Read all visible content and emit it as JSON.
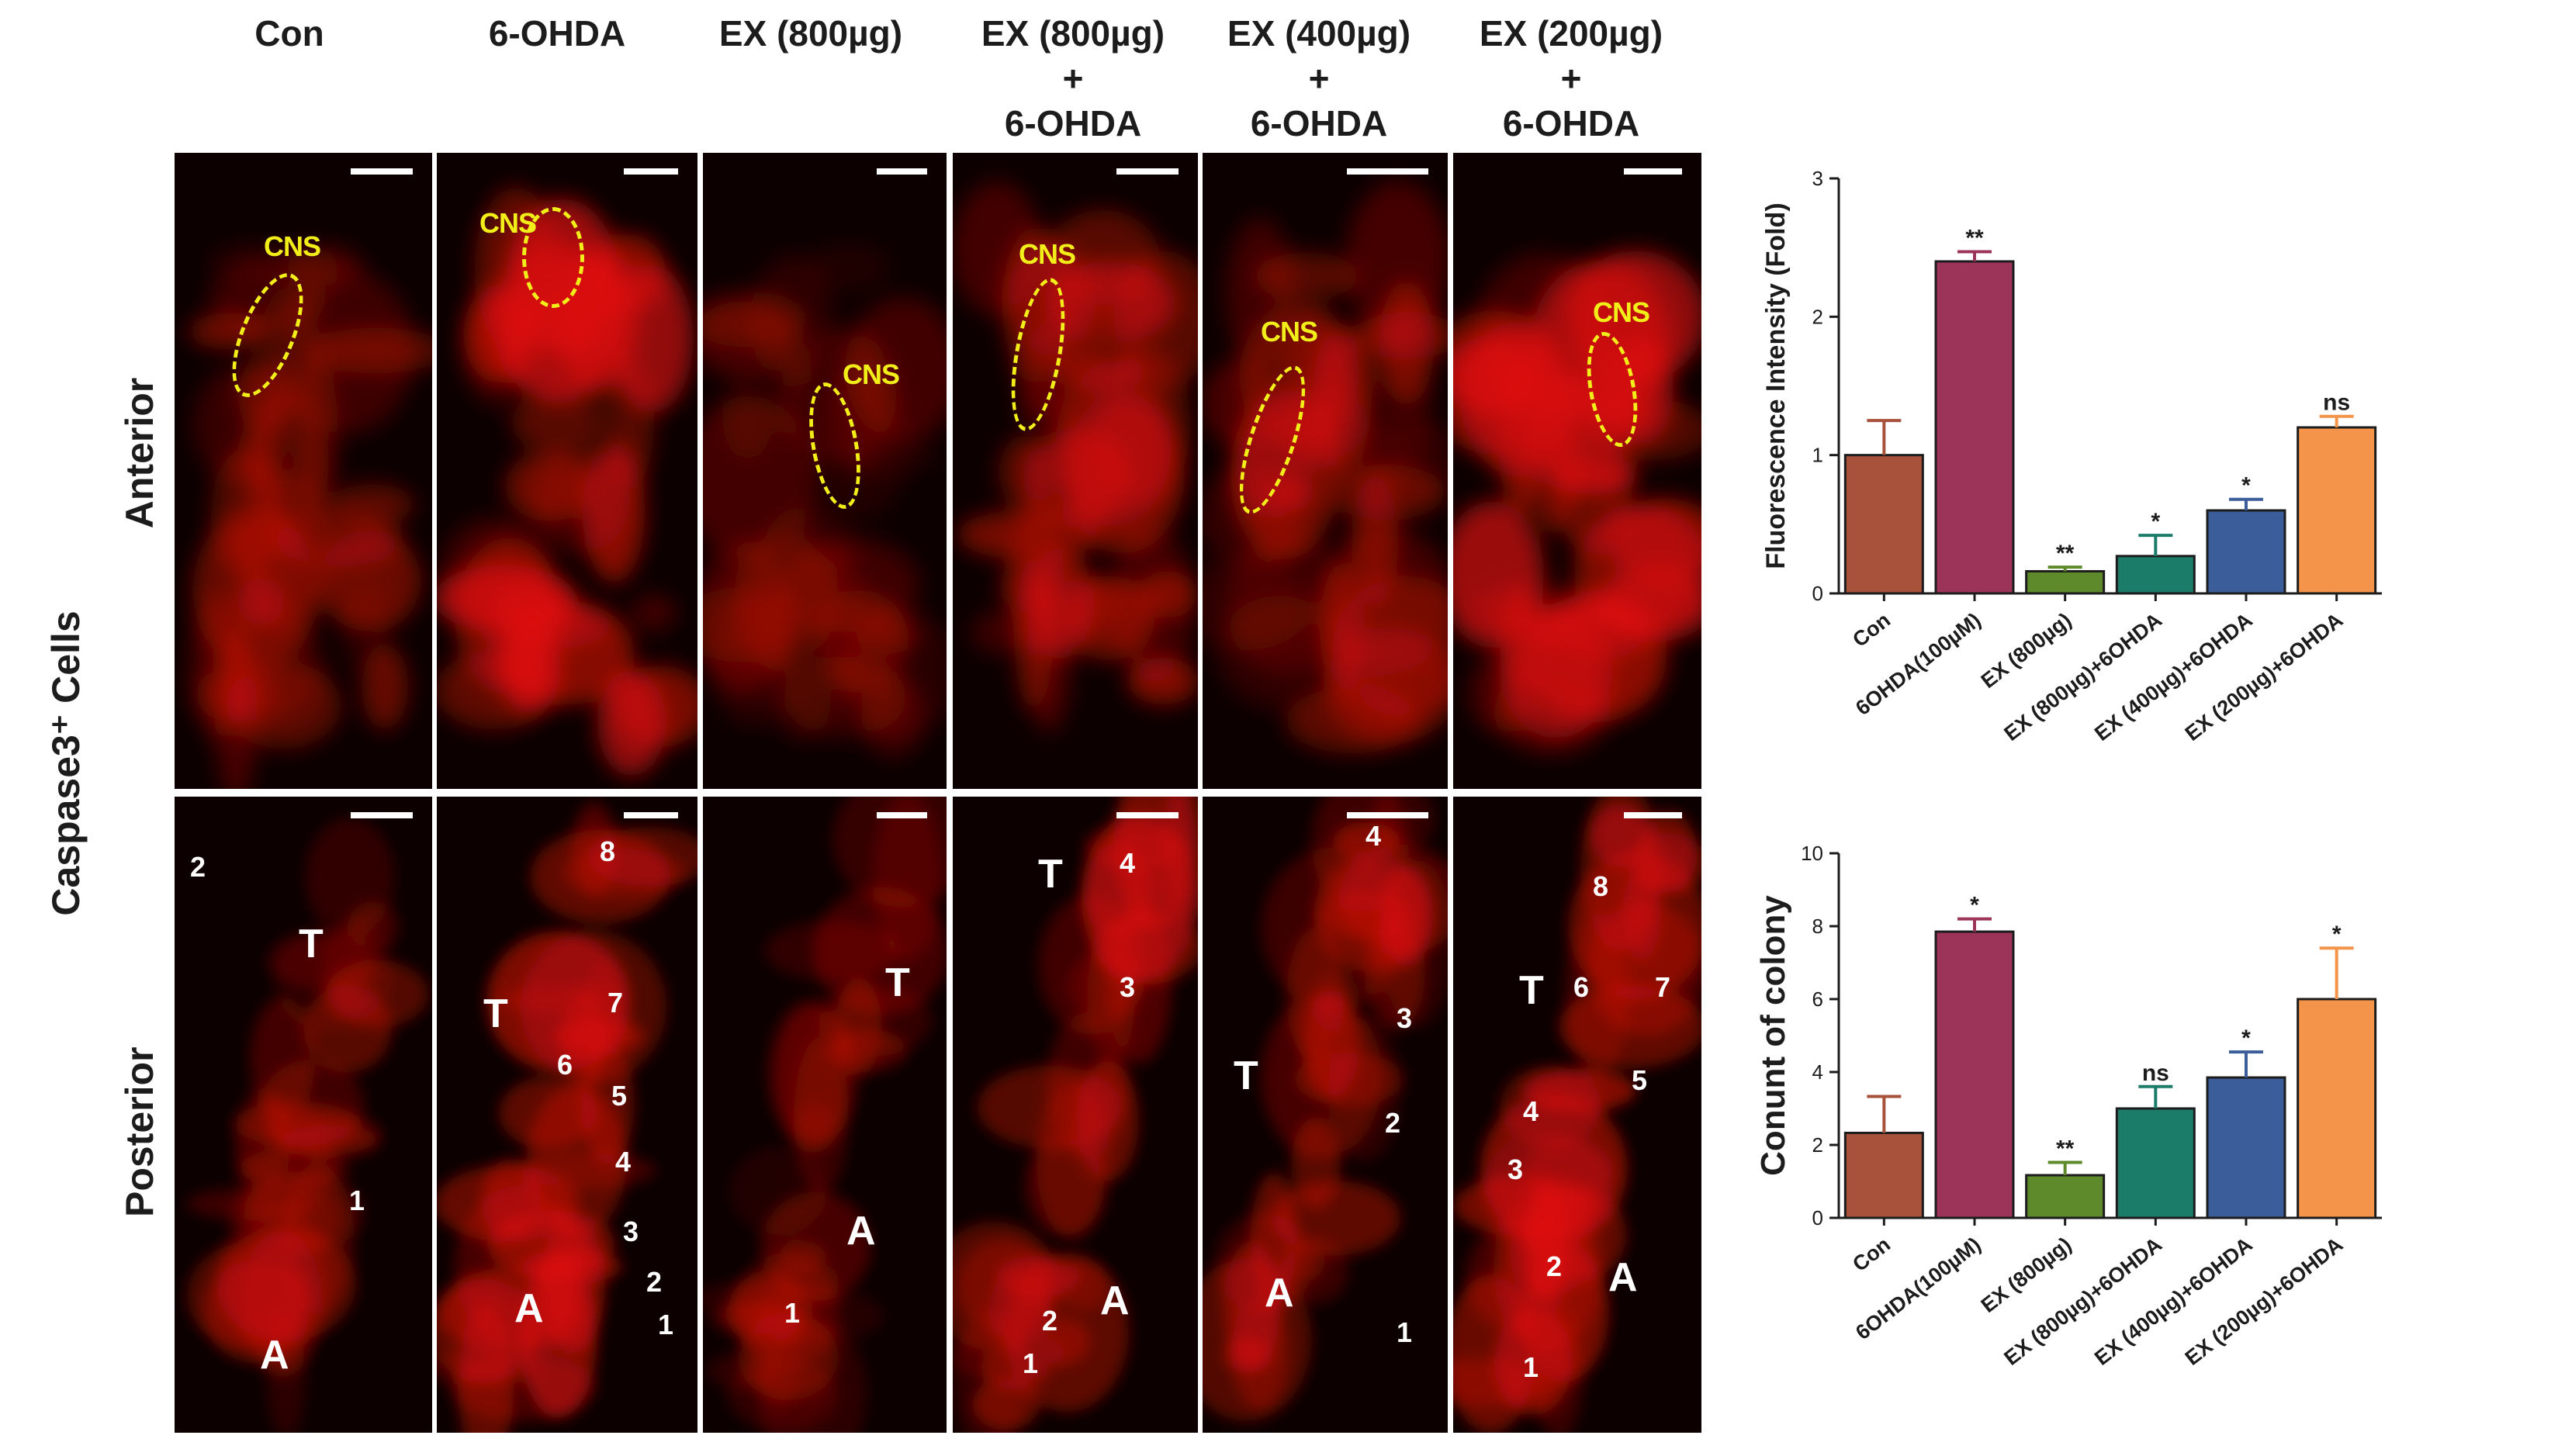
{
  "figure": {
    "column_headers": [
      "Con",
      "6-OHDA",
      "EX (800µg)",
      "EX (800µg)\n+\n6-OHDA",
      "EX (400µg)\n+\n6-OHDA",
      "EX (200µg)\n+\n6-OHDA"
    ],
    "side_label": "Caspase3⁺ Cells",
    "row_labels": {
      "anterior": "Anterior",
      "posterior": "Posterior"
    },
    "cns_label": "CNS",
    "posterior_panels": [
      {
        "regions": [
          "T",
          "A"
        ],
        "cell_numbers": [
          "2",
          "1"
        ]
      },
      {
        "regions": [
          "T",
          "A"
        ],
        "cell_numbers": [
          "8",
          "7",
          "6",
          "5",
          "4",
          "3",
          "2",
          "1"
        ]
      },
      {
        "regions": [
          "T",
          "A"
        ],
        "cell_numbers": [
          "1"
        ]
      },
      {
        "regions": [
          "T",
          "A"
        ],
        "cell_numbers": [
          "4",
          "3",
          "2",
          "1"
        ]
      },
      {
        "regions": [
          "T",
          "A"
        ],
        "cell_numbers": [
          "4",
          "3",
          "2",
          "1"
        ]
      },
      {
        "regions": [
          "T",
          "A"
        ],
        "cell_numbers": [
          "8",
          "6",
          "7",
          "5",
          "4",
          "3",
          "2",
          "1"
        ]
      }
    ],
    "panel_colors": {
      "background": "#0c0000",
      "signal": "#e3120b",
      "annotation": "#f2ee1a"
    }
  },
  "chart_data": [
    {
      "type": "bar",
      "categories": [
        "Con",
        "6OHDA(100µM)",
        "EX (800µg)",
        "EX (800µg)+6OHDA",
        "EX (400µg)+6OHDA",
        "EX (200µg)+6OHDA"
      ],
      "values": [
        1.0,
        2.4,
        0.16,
        0.27,
        0.6,
        1.2
      ],
      "errors": [
        0.25,
        0.07,
        0.03,
        0.15,
        0.08,
        0.08
      ],
      "significance": [
        "",
        "**",
        "**",
        "*",
        "*",
        "ns"
      ],
      "colors": [
        "#a8523c",
        "#9c3359",
        "#5e8a2c",
        "#1b7c6a",
        "#3b5d9a",
        "#f4944a"
      ],
      "ylabel": "Fluorescence Intensity (Fold)",
      "ylim": [
        0,
        3
      ],
      "yticks": [
        0,
        1,
        2,
        3
      ]
    },
    {
      "type": "bar",
      "categories": [
        "Con",
        "6OHDA(100µM)",
        "EX (800µg)",
        "EX (800µg)+6OHDA",
        "EX (400µg)+6OHDA",
        "EX (200µg)+6OHDA"
      ],
      "values": [
        2.33,
        7.85,
        1.17,
        3.0,
        3.85,
        6.0
      ],
      "errors": [
        1.0,
        0.35,
        0.35,
        0.6,
        0.7,
        1.4
      ],
      "significance": [
        "",
        "*",
        "**",
        "ns",
        "*",
        "*"
      ],
      "colors": [
        "#a8523c",
        "#9c3359",
        "#5e8a2c",
        "#1b7c6a",
        "#3b5d9a",
        "#f4944a"
      ],
      "ylabel": "Conunt of colony",
      "ylim": [
        0,
        10
      ],
      "yticks": [
        0,
        2,
        4,
        6,
        8,
        10
      ]
    }
  ]
}
